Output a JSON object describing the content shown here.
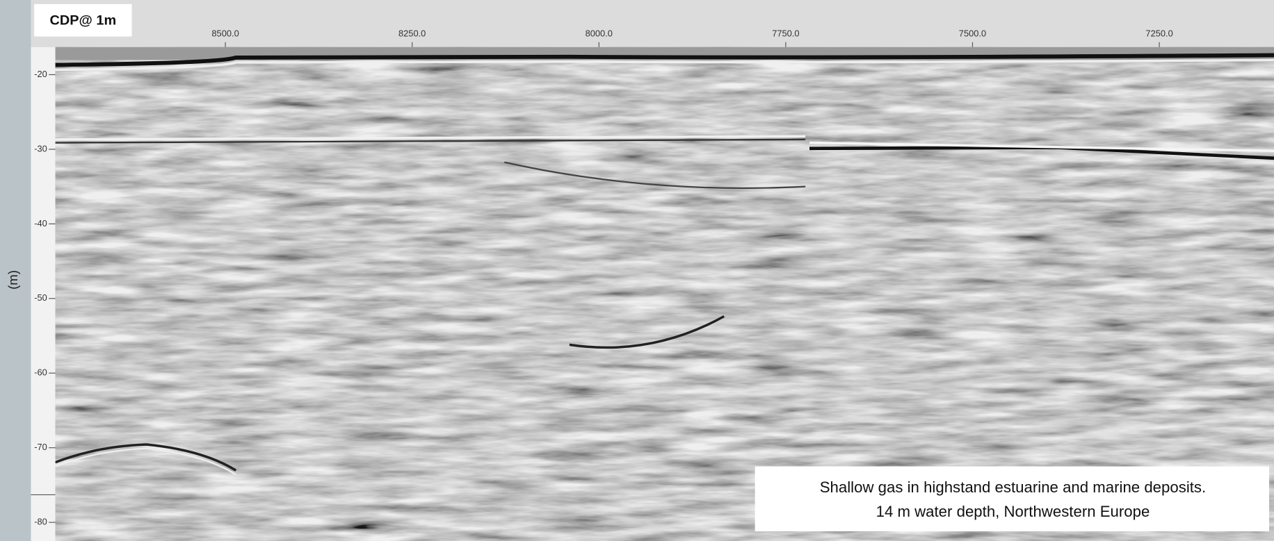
{
  "header": {
    "label": "CDP@ 1m"
  },
  "axes": {
    "y_label": "(m)",
    "xlim": [
      8727.6,
      7096.5
    ],
    "xticks": [
      {
        "value": 8500,
        "label": "8500.0"
      },
      {
        "value": 8250,
        "label": "8250.0"
      },
      {
        "value": 8000,
        "label": "8000.0"
      },
      {
        "value": 7750,
        "label": "7750.0"
      },
      {
        "value": 7500,
        "label": "7500.0"
      },
      {
        "value": 7250,
        "label": "7250.0"
      }
    ],
    "ylim": [
      -16.3,
      -82.5
    ],
    "yticks": [
      -20,
      -30,
      -40,
      -50,
      -60,
      -70,
      -80
    ]
  },
  "caption": {
    "lines": [
      "Shallow gas in highstand estuarine and marine deposits.",
      "14 m  water depth, Northwestern Europe"
    ]
  }
}
